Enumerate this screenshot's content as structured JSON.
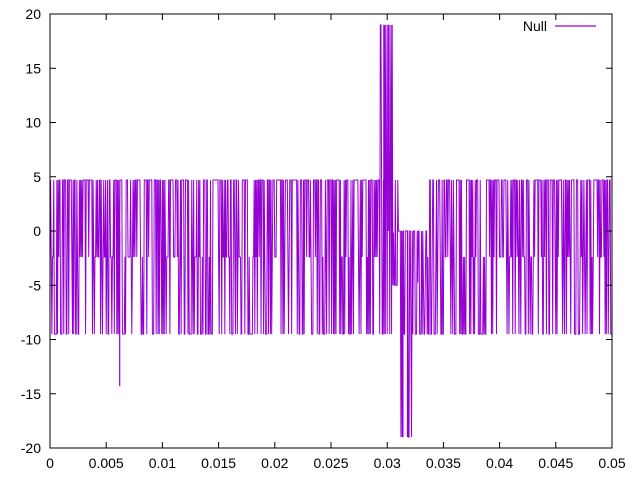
{
  "chart_data": {
    "type": "line",
    "title": "",
    "xlabel": "",
    "ylabel": "",
    "xlim": [
      0,
      0.05
    ],
    "ylim": [
      -20,
      20
    ],
    "x_ticks": [
      0,
      0.005,
      0.01,
      0.015,
      0.02,
      0.025,
      0.03,
      0.035,
      0.04,
      0.045,
      0.05
    ],
    "x_tick_labels": [
      "0",
      "0.005",
      "0.01",
      "0.015",
      "0.02",
      "0.025",
      "0.03",
      "0.035",
      "0.04",
      "0.045",
      "0.05"
    ],
    "y_ticks": [
      -20,
      -15,
      -10,
      -5,
      0,
      5,
      10,
      15,
      20
    ],
    "y_tick_labels": [
      "-20",
      "-15",
      "-10",
      "-5",
      "0",
      "5",
      "10",
      "15",
      "20"
    ],
    "grid": false,
    "legend": {
      "position": "top-right"
    },
    "series": [
      {
        "name": "Null",
        "color": "#9400d3",
        "segments": [
          {
            "x": [
              0,
              0.0035
            ],
            "low": -9.5,
            "high": 4.7
          },
          {
            "x": [
              0.0035,
              0.0293
            ],
            "low": -9.5,
            "high": 4.7
          },
          {
            "x": [
              0.0293,
              0.0305
            ],
            "low": -9.5,
            "high": 19
          },
          {
            "x": [
              0.0305,
              0.031
            ],
            "low": -5,
            "high": 4.7
          },
          {
            "x": [
              0.031,
              0.0322
            ],
            "low": -19,
            "high": 0
          },
          {
            "x": [
              0.0322,
              0.0335
            ],
            "low": -9.5,
            "high": 0
          },
          {
            "x": [
              0.0335,
              0.05
            ],
            "low": -9.5,
            "high": 4.7
          }
        ],
        "spikes": [
          {
            "x": 0.0062,
            "y": -14.3
          },
          {
            "x": 0.0297,
            "y": 19
          },
          {
            "x": 0.0301,
            "y": 19
          },
          {
            "x": 0.0314,
            "y": -19
          },
          {
            "x": 0.0318,
            "y": -19
          }
        ]
      }
    ]
  }
}
